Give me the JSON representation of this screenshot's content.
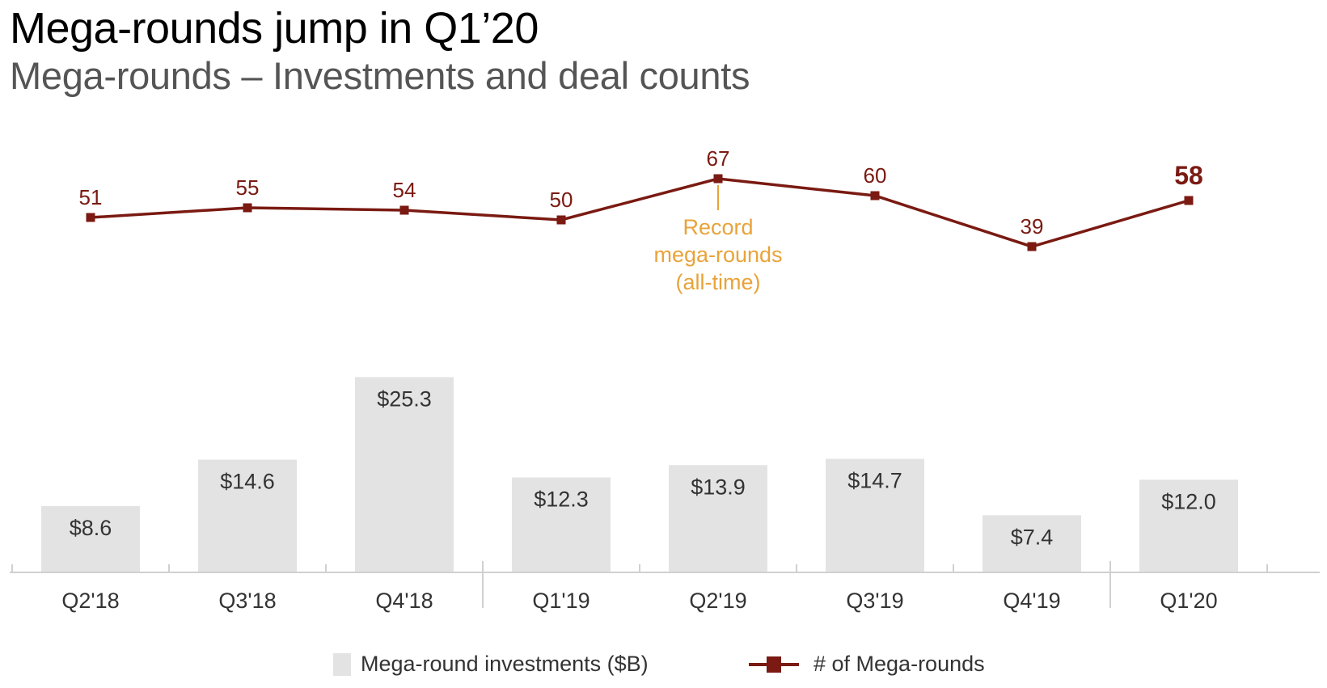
{
  "header": {
    "title": "Mega-rounds jump in Q1’20",
    "subtitle": "Mega-rounds – Investments and deal counts"
  },
  "colors": {
    "bar": "#e3e3e3",
    "line": "#7a1a12",
    "annotation": "#e8a33a",
    "axis": "#d0d0d0",
    "label": "#333333"
  },
  "chart_data": {
    "type": "bar+line",
    "title": "Mega-rounds – Investments and deal counts",
    "categories": [
      "Q2'18",
      "Q3'18",
      "Q4'18",
      "Q1'19",
      "Q2'19",
      "Q3'19",
      "Q4'19",
      "Q1'20"
    ],
    "series": [
      {
        "name": "Mega-round investments ($B)",
        "type": "bar",
        "values": [
          8.6,
          14.6,
          25.3,
          12.3,
          13.9,
          14.7,
          7.4,
          12.0
        ],
        "labels": [
          "$8.6",
          "$14.6",
          "$25.3",
          "$12.3",
          "$13.9",
          "$14.7",
          "$7.4",
          "$12.0"
        ]
      },
      {
        "name": "# of Mega-rounds",
        "type": "line",
        "values": [
          51,
          55,
          54,
          50,
          67,
          60,
          39,
          58
        ],
        "labels": [
          "51",
          "55",
          "54",
          "50",
          "67",
          "60",
          "39",
          "58"
        ]
      }
    ],
    "annotation": {
      "category": "Q2'19",
      "lines": [
        "Record",
        "mega-rounds",
        "(all-time)"
      ]
    },
    "legend": {
      "placement": "bottom",
      "items": [
        "Mega-round investments ($B)",
        "# of Mega-rounds"
      ]
    },
    "grid": false
  }
}
